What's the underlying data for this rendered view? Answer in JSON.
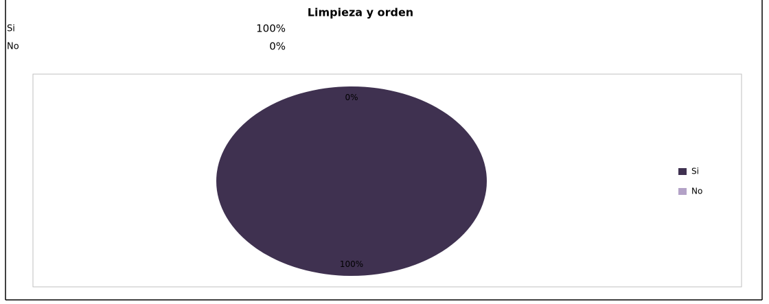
{
  "title": "Limpieza y orden",
  "table": {
    "rows": [
      {
        "label": "Si",
        "value": "100%"
      },
      {
        "label": "No",
        "value": "0%"
      }
    ]
  },
  "chart_data": {
    "type": "pie",
    "categories": [
      "Si",
      "No"
    ],
    "values": [
      100,
      0
    ],
    "value_labels": [
      "100%",
      "0%"
    ],
    "colors": [
      "#3f3150",
      "#b3a2c7"
    ],
    "legend": "right"
  }
}
